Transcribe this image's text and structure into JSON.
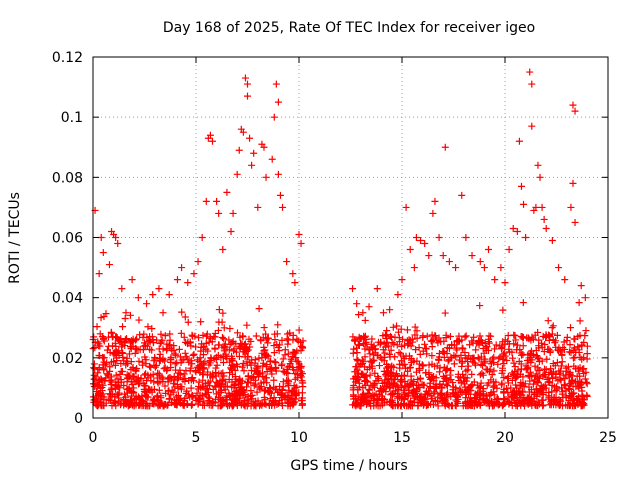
{
  "chart_data": {
    "type": "scatter",
    "title": "Day 168 of 2025, Rate Of TEC Index for receiver igeo",
    "xlabel": "GPS time / hours",
    "ylabel": "ROTI / TECUs",
    "xlim": [
      0,
      25
    ],
    "ylim": [
      0,
      0.12
    ],
    "xticks": [
      0,
      5,
      10,
      15,
      20,
      25
    ],
    "yticks": [
      0,
      0.02,
      0.04,
      0.06,
      0.08,
      0.1,
      0.12
    ],
    "xtick_labels": [
      "0",
      "5",
      "10",
      "15",
      "20",
      "25"
    ],
    "ytick_labels": [
      "0",
      "0.02",
      "0.04",
      "0.06",
      "0.08",
      "0.1",
      "0.12"
    ],
    "grid": true,
    "marker": "+",
    "color": "#ff0000",
    "series": [
      {
        "points": [
          [
            0.1,
            0.069
          ],
          [
            0.3,
            0.048
          ],
          [
            0.4,
            0.06
          ],
          [
            0.5,
            0.055
          ],
          [
            0.8,
            0.051
          ],
          [
            0.9,
            0.062
          ],
          [
            1.0,
            0.061
          ],
          [
            1.1,
            0.06
          ],
          [
            1.2,
            0.058
          ],
          [
            1.4,
            0.043
          ],
          [
            1.6,
            0.035
          ],
          [
            1.9,
            0.046
          ],
          [
            2.2,
            0.04
          ],
          [
            2.6,
            0.038
          ],
          [
            2.9,
            0.041
          ],
          [
            3.2,
            0.043
          ],
          [
            3.4,
            0.035
          ],
          [
            3.7,
            0.041
          ],
          [
            4.1,
            0.046
          ],
          [
            4.3,
            0.05
          ],
          [
            4.6,
            0.045
          ],
          [
            4.9,
            0.048
          ],
          [
            5.1,
            0.052
          ],
          [
            5.3,
            0.06
          ],
          [
            5.5,
            0.072
          ],
          [
            5.6,
            0.093
          ],
          [
            5.7,
            0.094
          ],
          [
            5.8,
            0.092
          ],
          [
            6.0,
            0.072
          ],
          [
            6.1,
            0.068
          ],
          [
            6.3,
            0.056
          ],
          [
            6.5,
            0.075
          ],
          [
            6.7,
            0.062
          ],
          [
            6.8,
            0.068
          ],
          [
            7.0,
            0.081
          ],
          [
            7.1,
            0.089
          ],
          [
            7.2,
            0.096
          ],
          [
            7.3,
            0.095
          ],
          [
            7.4,
            0.113
          ],
          [
            7.5,
            0.111
          ],
          [
            7.5,
            0.107
          ],
          [
            7.6,
            0.093
          ],
          [
            7.7,
            0.084
          ],
          [
            7.8,
            0.088
          ],
          [
            8.0,
            0.07
          ],
          [
            8.2,
            0.091
          ],
          [
            8.3,
            0.09
          ],
          [
            8.4,
            0.08
          ],
          [
            8.7,
            0.086
          ],
          [
            8.8,
            0.1
          ],
          [
            8.9,
            0.111
          ],
          [
            9.0,
            0.105
          ],
          [
            9.0,
            0.081
          ],
          [
            9.1,
            0.074
          ],
          [
            9.2,
            0.07
          ],
          [
            9.4,
            0.052
          ],
          [
            9.7,
            0.048
          ],
          [
            9.8,
            0.045
          ],
          [
            10.0,
            0.061
          ],
          [
            10.1,
            0.058
          ],
          [
            12.6,
            0.043
          ],
          [
            12.8,
            0.038
          ],
          [
            13.1,
            0.035
          ],
          [
            13.4,
            0.037
          ],
          [
            13.8,
            0.043
          ],
          [
            14.1,
            0.035
          ],
          [
            14.4,
            0.036
          ],
          [
            14.8,
            0.041
          ],
          [
            15.0,
            0.046
          ],
          [
            15.2,
            0.07
          ],
          [
            15.4,
            0.056
          ],
          [
            15.6,
            0.05
          ],
          [
            15.7,
            0.06
          ],
          [
            15.9,
            0.059
          ],
          [
            16.1,
            0.058
          ],
          [
            16.3,
            0.054
          ],
          [
            16.5,
            0.068
          ],
          [
            16.6,
            0.072
          ],
          [
            16.8,
            0.06
          ],
          [
            17.0,
            0.054
          ],
          [
            17.1,
            0.09
          ],
          [
            17.3,
            0.052
          ],
          [
            17.6,
            0.05
          ],
          [
            17.9,
            0.074
          ],
          [
            18.1,
            0.06
          ],
          [
            18.4,
            0.054
          ],
          [
            18.8,
            0.052
          ],
          [
            19.0,
            0.05
          ],
          [
            19.2,
            0.056
          ],
          [
            19.5,
            0.046
          ],
          [
            19.8,
            0.05
          ],
          [
            20.0,
            0.045
          ],
          [
            20.2,
            0.056
          ],
          [
            20.4,
            0.063
          ],
          [
            20.6,
            0.062
          ],
          [
            20.7,
            0.092
          ],
          [
            20.8,
            0.077
          ],
          [
            20.9,
            0.071
          ],
          [
            21.0,
            0.06
          ],
          [
            21.2,
            0.115
          ],
          [
            21.3,
            0.111
          ],
          [
            21.3,
            0.097
          ],
          [
            21.4,
            0.069
          ],
          [
            21.5,
            0.07
          ],
          [
            21.6,
            0.084
          ],
          [
            21.7,
            0.08
          ],
          [
            21.8,
            0.07
          ],
          [
            21.9,
            0.066
          ],
          [
            22.0,
            0.063
          ],
          [
            22.3,
            0.059
          ],
          [
            22.6,
            0.05
          ],
          [
            22.9,
            0.046
          ],
          [
            23.2,
            0.07
          ],
          [
            23.3,
            0.078
          ],
          [
            23.3,
            0.104
          ],
          [
            23.4,
            0.102
          ],
          [
            23.4,
            0.065
          ],
          [
            23.7,
            0.044
          ],
          [
            23.9,
            0.04
          ]
        ],
        "baseline_segments": [
          {
            "x_start": 0.0,
            "x_end": 10.2,
            "y_low": 0.004,
            "y_high": 0.028
          },
          {
            "x_start": 12.6,
            "x_end": 24.0,
            "y_low": 0.004,
            "y_high": 0.028
          }
        ]
      }
    ]
  }
}
